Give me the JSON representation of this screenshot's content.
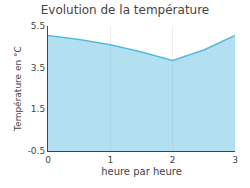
{
  "chart_data": {
    "type": "area",
    "title": "Evolution de la température",
    "xlabel": "heure par heure",
    "ylabel": "Température en °C",
    "x": [
      0,
      0.5,
      1.0,
      1.5,
      2.0,
      2.5,
      3.0
    ],
    "values": [
      5.05,
      4.85,
      4.6,
      4.25,
      3.85,
      4.35,
      5.05
    ],
    "color": "#55bbdd",
    "xlim": [
      0,
      3.0
    ],
    "ylim": [
      -0.5,
      5.5
    ],
    "xticks": [
      0,
      1,
      2,
      3
    ],
    "yticks": [
      -0.5,
      1.5,
      3.5,
      5.5
    ],
    "grid": "x"
  }
}
